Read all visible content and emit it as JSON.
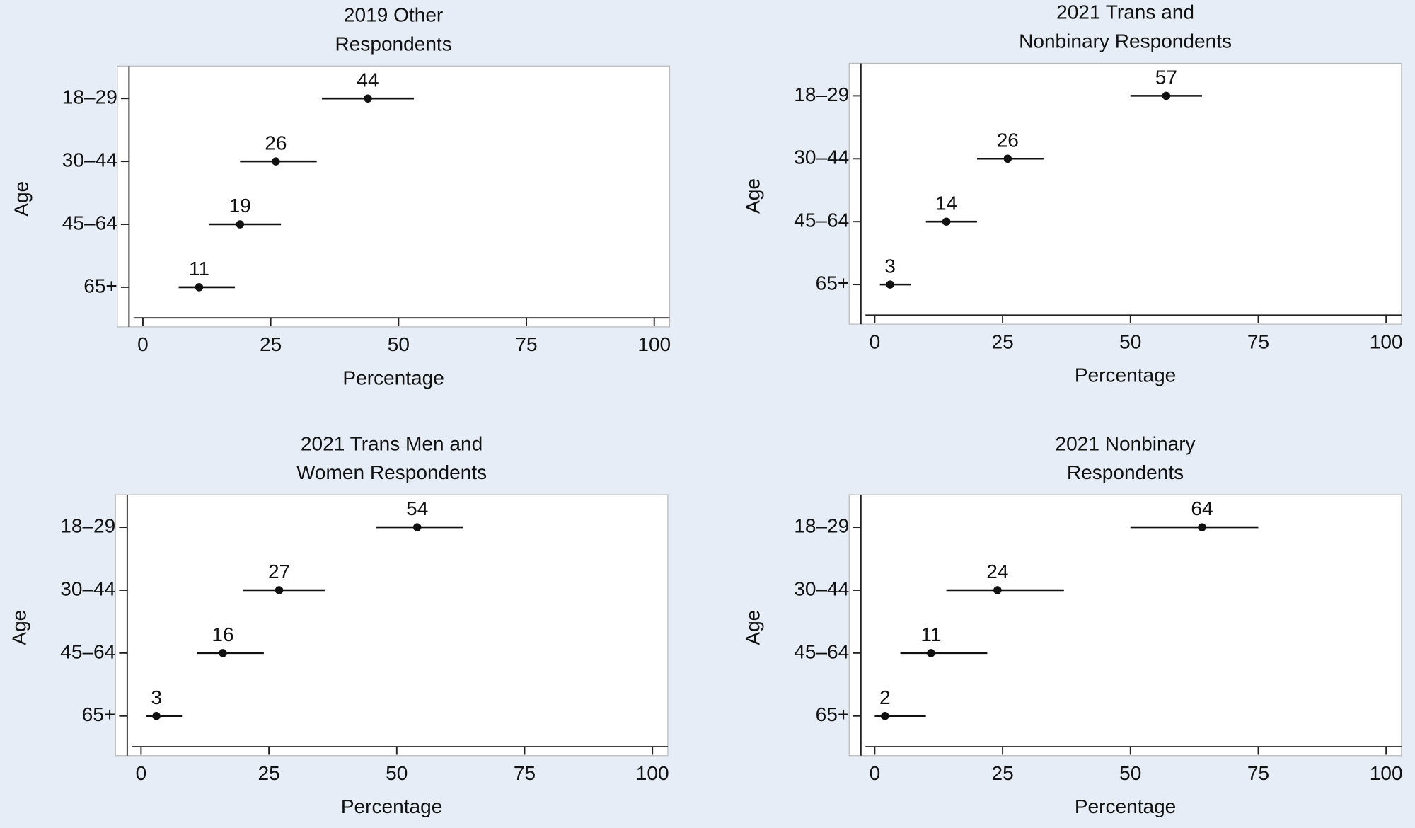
{
  "chart_data": [
    {
      "type": "dotplot",
      "title": [
        "2019 Other",
        "Respondents"
      ],
      "xlabel": "Percentage",
      "ylabel": "Age",
      "categories": [
        "18–29",
        "30–44",
        "45–64",
        "65+"
      ],
      "values": [
        44,
        26,
        19,
        11
      ],
      "ci_low": [
        35,
        19,
        13,
        7
      ],
      "ci_high": [
        53,
        34,
        27,
        18
      ],
      "color": "#111111",
      "xlim": [
        -5,
        103
      ],
      "xticks": [
        0,
        25,
        50,
        75,
        100
      ]
    },
    {
      "type": "dotplot",
      "title": [
        "2021 Trans and",
        "Nonbinary Respondents"
      ],
      "xlabel": "Percentage",
      "ylabel": "Age",
      "categories": [
        "18–29",
        "30–44",
        "45–64",
        "65+"
      ],
      "values": [
        57,
        26,
        14,
        3
      ],
      "ci_low": [
        50,
        20,
        10,
        1
      ],
      "ci_high": [
        64,
        33,
        20,
        7
      ],
      "color": "#111111",
      "xlim": [
        -5,
        103
      ],
      "xticks": [
        0,
        25,
        50,
        75,
        100
      ]
    },
    {
      "type": "dotplot",
      "title": [
        "2021 Trans Men and",
        "Women Respondents"
      ],
      "xlabel": "Percentage",
      "ylabel": "Age",
      "categories": [
        "18–29",
        "30–44",
        "45–64",
        "65+"
      ],
      "values": [
        54,
        27,
        16,
        3
      ],
      "ci_low": [
        46,
        20,
        11,
        1
      ],
      "ci_high": [
        63,
        36,
        24,
        8
      ],
      "color": "#111111",
      "xlim": [
        -5,
        103
      ],
      "xticks": [
        0,
        25,
        50,
        75,
        100
      ]
    },
    {
      "type": "dotplot",
      "title": [
        "2021 Nonbinary",
        "Respondents"
      ],
      "xlabel": "Percentage",
      "ylabel": "Age",
      "categories": [
        "18–29",
        "30–44",
        "45–64",
        "65+"
      ],
      "values": [
        64,
        24,
        11,
        2
      ],
      "ci_low": [
        50,
        14,
        5,
        0
      ],
      "ci_high": [
        75,
        37,
        22,
        10
      ],
      "color": "#111111",
      "xlim": [
        -5,
        103
      ],
      "xticks": [
        0,
        25,
        50,
        75,
        100
      ]
    }
  ]
}
